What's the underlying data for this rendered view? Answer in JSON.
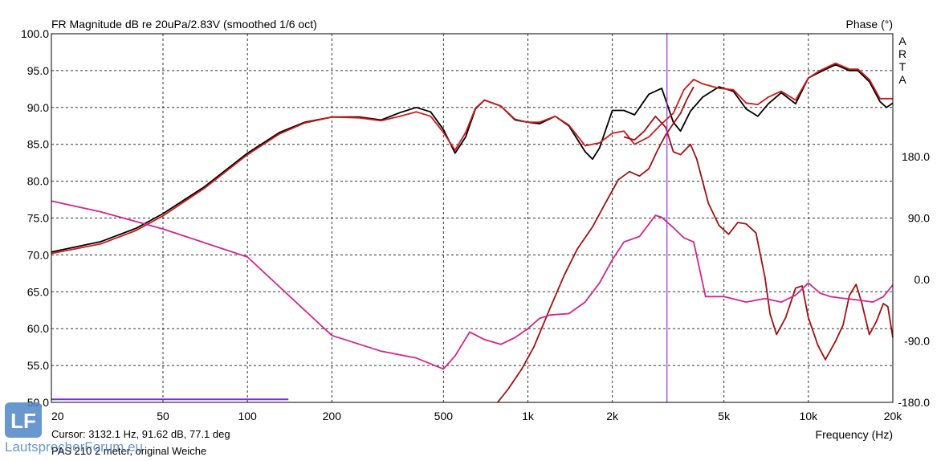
{
  "chart_data": {
    "type": "line",
    "title": "FR Magnitude dB re 20uPa/2.83V (smoothed 1/6 oct)",
    "y2_title": "Phase (°)",
    "brand": [
      "A",
      "R",
      "T",
      "A"
    ],
    "xlabel": "Frequency (Hz)",
    "xscale": "log",
    "xlim": [
      20,
      20000
    ],
    "ylim": [
      50,
      100
    ],
    "y2lim": [
      -180,
      360
    ],
    "x_ticks": [
      20,
      50,
      100,
      200,
      500,
      1000,
      2000,
      5000,
      10000,
      20000
    ],
    "x_tick_labels": [
      "20",
      "50",
      "100",
      "200",
      "500",
      "1k",
      "2k",
      "5k",
      "10k",
      "20k"
    ],
    "y_ticks": [
      50,
      55,
      60,
      65,
      70,
      75,
      80,
      85,
      90,
      95,
      100
    ],
    "y_tick_labels": [
      "50.0",
      "55.0",
      "60.0",
      "65.0",
      "70.0",
      "75.0",
      "80.0",
      "85.0",
      "90.0",
      "95.0",
      "100.0"
    ],
    "y2_ticks": [
      -180,
      -90,
      0,
      90,
      180
    ],
    "y2_tick_labels": [
      "-180.0",
      "-90.0",
      "0.0",
      "90.0",
      "180.0"
    ],
    "grid": true,
    "cursor": {
      "x": 3132.1,
      "color": "#9b30d9"
    },
    "cursor_readout": "Cursor: 3132.1 Hz, 91.62 dB, 77.1 deg",
    "curve_name": "PAS 210  2 meter, original Weiche",
    "series": [
      {
        "color": "#000000",
        "axis": "left",
        "points": [
          [
            20,
            70.4
          ],
          [
            30,
            71.8
          ],
          [
            40,
            73.6
          ],
          [
            50,
            75.6
          ],
          [
            70,
            79.2
          ],
          [
            100,
            83.8
          ],
          [
            130,
            86.6
          ],
          [
            160,
            88.0
          ],
          [
            200,
            88.7
          ],
          [
            250,
            88.7
          ],
          [
            300,
            88.3
          ],
          [
            350,
            89.3
          ],
          [
            400,
            90.0
          ],
          [
            450,
            89.4
          ],
          [
            500,
            87.0
          ],
          [
            550,
            83.8
          ],
          [
            600,
            86.0
          ],
          [
            650,
            89.8
          ],
          [
            700,
            91.0
          ],
          [
            800,
            90.2
          ],
          [
            900,
            88.3
          ],
          [
            1000,
            88.0
          ],
          [
            1100,
            87.8
          ],
          [
            1250,
            88.8
          ],
          [
            1400,
            87.5
          ],
          [
            1600,
            84.0
          ],
          [
            1700,
            83.0
          ],
          [
            1800,
            84.5
          ],
          [
            2000,
            89.6
          ],
          [
            2200,
            89.6
          ],
          [
            2400,
            89.0
          ],
          [
            2700,
            91.8
          ],
          [
            3000,
            92.6
          ],
          [
            3300,
            88.0
          ],
          [
            3500,
            86.8
          ],
          [
            3800,
            89.5
          ],
          [
            4200,
            91.4
          ],
          [
            4800,
            92.8
          ],
          [
            5400,
            92.2
          ],
          [
            6000,
            89.8
          ],
          [
            6600,
            88.8
          ],
          [
            7200,
            90.5
          ],
          [
            8000,
            92.0
          ],
          [
            9000,
            90.5
          ],
          [
            10000,
            94.0
          ],
          [
            11000,
            94.8
          ],
          [
            12500,
            95.8
          ],
          [
            14000,
            95.0
          ],
          [
            15000,
            95.0
          ],
          [
            16500,
            93.5
          ],
          [
            18000,
            90.8
          ],
          [
            19000,
            90.0
          ],
          [
            20000,
            90.6
          ]
        ]
      },
      {
        "color": "#cc1a1a",
        "axis": "left",
        "points": [
          [
            20,
            70.2
          ],
          [
            30,
            71.5
          ],
          [
            40,
            73.3
          ],
          [
            50,
            75.3
          ],
          [
            70,
            79.0
          ],
          [
            100,
            83.6
          ],
          [
            130,
            86.4
          ],
          [
            160,
            87.9
          ],
          [
            200,
            88.7
          ],
          [
            250,
            88.6
          ],
          [
            300,
            88.2
          ],
          [
            350,
            88.8
          ],
          [
            400,
            89.4
          ],
          [
            450,
            88.8
          ],
          [
            500,
            86.6
          ],
          [
            550,
            84.2
          ],
          [
            600,
            86.6
          ],
          [
            650,
            89.9
          ],
          [
            700,
            91.0
          ],
          [
            800,
            90.2
          ],
          [
            900,
            88.4
          ],
          [
            1000,
            88.0
          ],
          [
            1100,
            88.0
          ],
          [
            1250,
            88.8
          ],
          [
            1400,
            87.6
          ],
          [
            1600,
            84.8
          ],
          [
            1800,
            85.2
          ],
          [
            2000,
            86.5
          ],
          [
            2200,
            86.8
          ],
          [
            2400,
            85.0
          ],
          [
            2700,
            86.0
          ],
          [
            3000,
            87.8
          ],
          [
            3300,
            89.2
          ],
          [
            3600,
            92.4
          ],
          [
            3900,
            93.8
          ],
          [
            4200,
            93.2
          ],
          [
            4800,
            92.6
          ],
          [
            5400,
            92.4
          ],
          [
            6000,
            90.6
          ],
          [
            6600,
            90.4
          ],
          [
            7200,
            91.4
          ],
          [
            8000,
            92.2
          ],
          [
            9000,
            91.0
          ],
          [
            10000,
            94.0
          ],
          [
            11000,
            95.0
          ],
          [
            12500,
            96.0
          ],
          [
            14000,
            95.2
          ],
          [
            15000,
            95.2
          ],
          [
            16500,
            93.8
          ],
          [
            18000,
            91.2
          ],
          [
            20000,
            91.2
          ]
        ]
      },
      {
        "color": "#a01010",
        "axis": "left",
        "points": [
          [
            780,
            50.0
          ],
          [
            850,
            51.8
          ],
          [
            950,
            54.5
          ],
          [
            1050,
            57.5
          ],
          [
            1200,
            62.8
          ],
          [
            1350,
            67.3
          ],
          [
            1500,
            70.8
          ],
          [
            1700,
            73.8
          ],
          [
            1900,
            77.2
          ],
          [
            2100,
            80.2
          ],
          [
            2300,
            81.3
          ],
          [
            2500,
            80.7
          ],
          [
            2700,
            81.7
          ],
          [
            2900,
            84.2
          ],
          [
            3100,
            86.3
          ],
          [
            3300,
            87.8
          ],
          [
            3500,
            89.2
          ],
          [
            3700,
            91.2
          ],
          [
            3900,
            92.8
          ]
        ]
      },
      {
        "color": "#a01010",
        "axis": "left",
        "points": [
          [
            2200,
            86.0
          ],
          [
            2400,
            85.6
          ],
          [
            2600,
            86.8
          ],
          [
            2850,
            88.8
          ],
          [
            3100,
            87.3
          ],
          [
            3300,
            84.0
          ],
          [
            3500,
            83.6
          ],
          [
            3800,
            85.0
          ],
          [
            4000,
            83.0
          ],
          [
            4400,
            77.0
          ],
          [
            4800,
            74.0
          ],
          [
            5200,
            72.8
          ],
          [
            5600,
            74.4
          ],
          [
            6000,
            74.2
          ],
          [
            6500,
            73.0
          ],
          [
            7000,
            67.0
          ],
          [
            7300,
            62.0
          ],
          [
            7700,
            59.2
          ],
          [
            8300,
            61.5
          ],
          [
            9000,
            65.5
          ],
          [
            9500,
            65.8
          ],
          [
            10000,
            61.5
          ],
          [
            10800,
            57.8
          ],
          [
            11500,
            55.8
          ],
          [
            12500,
            58.3
          ],
          [
            13300,
            60.5
          ],
          [
            14000,
            64.5
          ],
          [
            14800,
            66.0
          ],
          [
            15500,
            63.5
          ],
          [
            16500,
            59.2
          ],
          [
            17500,
            61.0
          ],
          [
            18500,
            63.4
          ],
          [
            19200,
            63.0
          ],
          [
            20000,
            58.8
          ]
        ]
      },
      {
        "color": "#d4248c",
        "axis": "right",
        "points": [
          [
            20,
            115
          ],
          [
            30,
            99
          ],
          [
            50,
            74
          ],
          [
            100,
            33
          ],
          [
            200,
            -82
          ],
          [
            300,
            -105
          ],
          [
            400,
            -115
          ],
          [
            500,
            -131
          ],
          [
            550,
            -112
          ],
          [
            620,
            -77
          ],
          [
            700,
            -88
          ],
          [
            800,
            -95
          ],
          [
            900,
            -85
          ],
          [
            1000,
            -72
          ],
          [
            1100,
            -57
          ],
          [
            1200,
            -52
          ],
          [
            1400,
            -50
          ],
          [
            1600,
            -33
          ],
          [
            1800,
            -5
          ],
          [
            2000,
            29
          ],
          [
            2200,
            55
          ],
          [
            2500,
            63
          ],
          [
            2700,
            81
          ],
          [
            2850,
            94
          ],
          [
            3000,
            91
          ],
          [
            3300,
            76
          ],
          [
            3600,
            61
          ],
          [
            3900,
            55
          ],
          [
            4300,
            -25
          ],
          [
            5000,
            -25
          ],
          [
            6000,
            -33
          ],
          [
            7000,
            -28
          ],
          [
            8000,
            -33
          ],
          [
            9000,
            -23
          ],
          [
            10000,
            -5
          ],
          [
            11000,
            -20
          ],
          [
            12000,
            -25
          ],
          [
            13000,
            -27
          ],
          [
            15000,
            -30
          ],
          [
            17000,
            -33
          ],
          [
            18500,
            -25
          ],
          [
            20000,
            -8
          ]
        ]
      },
      {
        "color": "#7a2ae0",
        "axis": "left",
        "points": [
          [
            20,
            50.4
          ],
          [
            140,
            50.4
          ]
        ]
      }
    ]
  },
  "watermark": "LautsprecherForum.eu",
  "logo_letters": "LF",
  "colors": {
    "grid": "#333333",
    "frame": "#000000",
    "logo": "#4f86c6"
  }
}
